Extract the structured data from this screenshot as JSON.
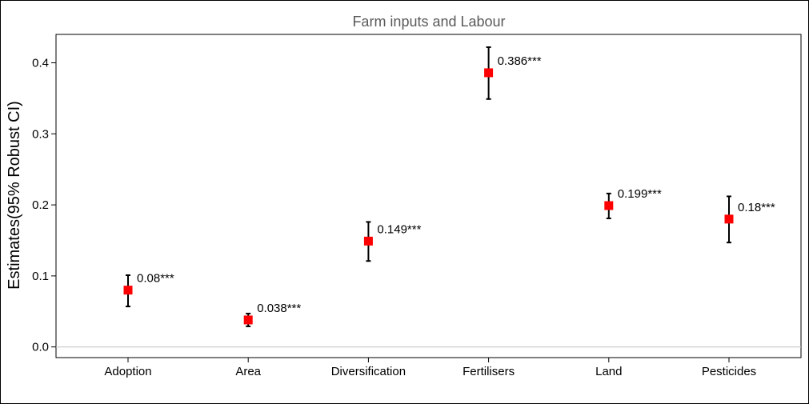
{
  "chart_data": {
    "type": "scatter",
    "title": "Farm inputs and Labour",
    "xlabel": "",
    "ylabel": "Estimates(95% Robust CI)",
    "categories": [
      "Adoption",
      "Area",
      "Diversification",
      "Fertilisers",
      "Land",
      "Pesticides"
    ],
    "values": [
      0.08,
      0.038,
      0.149,
      0.386,
      0.199,
      0.18
    ],
    "ci_lower": [
      0.057,
      0.029,
      0.121,
      0.349,
      0.181,
      0.147
    ],
    "ci_upper": [
      0.101,
      0.047,
      0.176,
      0.422,
      0.216,
      0.212
    ],
    "labels": [
      "0.08***",
      "0.038***",
      "0.149***",
      "0.386***",
      "0.199***",
      "0.18***"
    ],
    "ylim": [
      -0.015,
      0.44
    ],
    "yticks": [
      0.0,
      0.1,
      0.2,
      0.3,
      0.4
    ],
    "ytick_labels": [
      "0.0",
      "0.1",
      "0.2",
      "0.3",
      "0.4"
    ],
    "reference_line": 0,
    "grid": false,
    "marker_color": "#ff0000",
    "errorbar_color": "#000000",
    "reference_line_color": "#c8c8c8"
  }
}
